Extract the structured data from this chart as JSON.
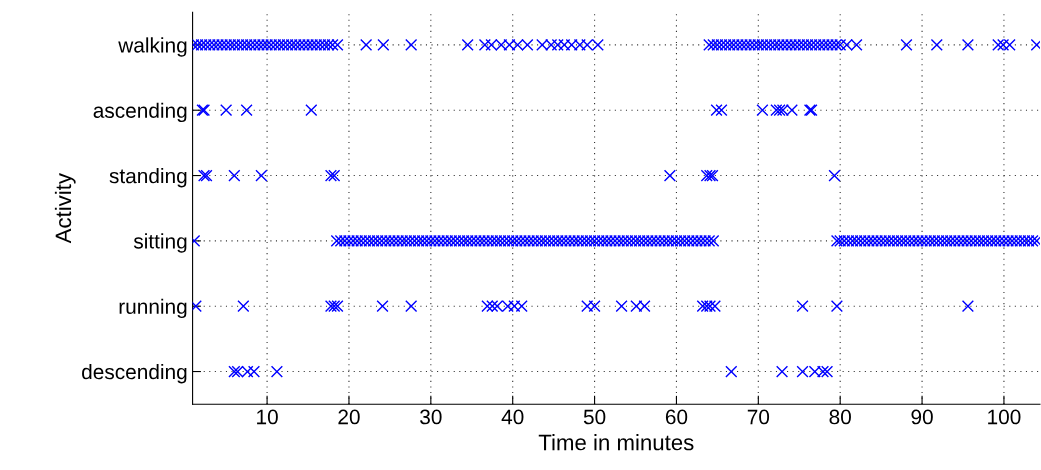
{
  "chart_data": {
    "type": "scatter",
    "orientation": "horizontal",
    "xlabel": "Time in minutes",
    "ylabel": "Activity",
    "categories": [
      "walking",
      "ascending",
      "standing",
      "sitting",
      "running",
      "descending"
    ],
    "xlim": [
      0.9,
      104.4
    ],
    "xticks": [
      10,
      20,
      30,
      40,
      50,
      60,
      70,
      80,
      90,
      100
    ],
    "grid": true,
    "marker": "cross",
    "series": [
      {
        "color": "#0000ff",
        "values": [
          1.0,
          1.5,
          2.0,
          2.5,
          3.0,
          3.5,
          4.0,
          4.5,
          5.0,
          5.5,
          6.0,
          6.5,
          7.0,
          7.5,
          8.0,
          8.5,
          9.0,
          9.5,
          10.0,
          10.5,
          11.0,
          11.5,
          12.0,
          12.5,
          13.0,
          13.5,
          14.0,
          14.5,
          15.0,
          15.5,
          16.0,
          16.5,
          17.0,
          17.5,
          18.0,
          18.6,
          22.1,
          24.2,
          27.6,
          34.5,
          36.6,
          37.4,
          38.6,
          39.6,
          40.6,
          41.8,
          43.6,
          44.7,
          45.5,
          46.3,
          47.2,
          48.2,
          49.1,
          50.4,
          64.0,
          64.5,
          65.0,
          65.5,
          66.0,
          66.5,
          67.0,
          67.5,
          68.0,
          68.5,
          69.0,
          69.5,
          70.0,
          70.5,
          71.0,
          71.5,
          72.0,
          72.5,
          73.0,
          73.5,
          74.0,
          74.5,
          75.0,
          75.5,
          76.0,
          76.5,
          77.0,
          77.5,
          78.0,
          78.5,
          79.0,
          79.5,
          80.0,
          80.8,
          82.0,
          88.1,
          91.8,
          95.6,
          99.3,
          99.9,
          100.7,
          104.0
        ],
        "x": [
          "walking",
          "walking",
          "walking",
          "walking",
          "walking",
          "walking",
          "walking",
          "walking",
          "walking",
          "walking",
          "walking",
          "walking",
          "walking",
          "walking",
          "walking",
          "walking",
          "walking",
          "walking",
          "walking",
          "walking",
          "walking",
          "walking",
          "walking",
          "walking",
          "walking",
          "walking",
          "walking",
          "walking",
          "walking",
          "walking",
          "walking",
          "walking",
          "walking",
          "walking",
          "walking",
          "walking",
          "walking",
          "walking",
          "walking",
          "walking",
          "walking",
          "walking",
          "walking",
          "walking",
          "walking",
          "walking",
          "walking",
          "walking",
          "walking",
          "walking",
          "walking",
          "walking",
          "walking",
          "walking",
          "walking",
          "walking",
          "walking",
          "walking",
          "walking",
          "walking",
          "walking",
          "walking",
          "walking",
          "walking",
          "walking",
          "walking",
          "walking",
          "walking",
          "walking",
          "walking",
          "walking",
          "walking",
          "walking",
          "walking",
          "walking",
          "walking",
          "walking",
          "walking",
          "walking",
          "walking",
          "walking",
          "walking",
          "walking",
          "walking",
          "walking",
          "walking",
          "walking",
          "walking",
          "walking",
          "walking",
          "walking",
          "walking",
          "walking",
          "walking",
          "walking",
          "walking"
        ]
      },
      {
        "color": "#0000ff",
        "values": [
          2.1,
          2.3,
          5.0,
          7.5,
          15.4,
          64.9,
          65.5,
          70.5,
          72.2,
          72.6,
          73.0,
          74.1,
          76.3,
          76.5
        ],
        "x": [
          "ascending",
          "ascending",
          "ascending",
          "ascending",
          "ascending",
          "ascending",
          "ascending",
          "ascending",
          "ascending",
          "ascending",
          "ascending",
          "ascending",
          "ascending",
          "ascending"
        ]
      },
      {
        "color": "#0000ff",
        "values": [
          2.3,
          2.6,
          6.0,
          9.3,
          17.8,
          18.2,
          59.2,
          63.7,
          64.1,
          64.4,
          79.3
        ],
        "x": [
          "standing",
          "standing",
          "standing",
          "standing",
          "standing",
          "standing",
          "standing",
          "standing",
          "standing",
          "standing",
          "standing"
        ]
      },
      {
        "color": "#0000ff",
        "values": [
          1.1,
          18.5,
          19.0,
          19.5,
          20.0,
          20.5,
          21.0,
          21.5,
          22.0,
          22.5,
          23.0,
          23.5,
          24.0,
          24.5,
          25.0,
          25.5,
          26.0,
          26.5,
          27.0,
          27.5,
          28.0,
          28.5,
          29.0,
          29.5,
          30.0,
          30.5,
          31.0,
          31.5,
          32.0,
          32.5,
          33.0,
          33.5,
          34.0,
          34.5,
          35.0,
          35.5,
          36.0,
          36.5,
          37.0,
          37.5,
          38.0,
          38.5,
          39.0,
          39.5,
          40.0,
          40.5,
          41.0,
          41.5,
          42.0,
          42.5,
          43.0,
          43.5,
          44.0,
          44.5,
          45.0,
          45.5,
          46.0,
          46.5,
          47.0,
          47.5,
          48.0,
          48.5,
          49.0,
          49.5,
          50.0,
          50.5,
          51.0,
          51.5,
          52.0,
          52.5,
          53.0,
          53.5,
          54.0,
          54.5,
          55.0,
          55.5,
          56.0,
          56.5,
          57.0,
          57.5,
          58.0,
          58.5,
          59.0,
          59.5,
          60.0,
          60.5,
          61.0,
          61.5,
          62.0,
          62.5,
          63.0,
          63.5,
          64.0,
          64.5,
          79.6,
          80.0,
          80.5,
          81.0,
          81.5,
          82.0,
          82.5,
          83.0,
          83.5,
          84.0,
          84.5,
          85.0,
          85.5,
          86.0,
          86.5,
          87.0,
          87.5,
          88.0,
          88.5,
          89.0,
          89.5,
          90.0,
          90.5,
          91.0,
          91.5,
          92.0,
          92.5,
          93.0,
          93.5,
          94.0,
          94.5,
          95.0,
          95.5,
          96.0,
          96.5,
          97.0,
          97.5,
          98.0,
          98.5,
          99.0,
          99.5,
          100.0,
          100.5,
          101.0,
          101.5,
          102.0,
          102.5,
          103.0,
          103.5,
          104.0
        ],
        "x": [
          "sitting",
          "sitting",
          "sitting",
          "sitting",
          "sitting",
          "sitting",
          "sitting",
          "sitting",
          "sitting",
          "sitting",
          "sitting",
          "sitting",
          "sitting",
          "sitting",
          "sitting",
          "sitting",
          "sitting",
          "sitting",
          "sitting",
          "sitting",
          "sitting",
          "sitting",
          "sitting",
          "sitting",
          "sitting",
          "sitting",
          "sitting",
          "sitting",
          "sitting",
          "sitting",
          "sitting",
          "sitting",
          "sitting",
          "sitting",
          "sitting",
          "sitting",
          "sitting",
          "sitting",
          "sitting",
          "sitting",
          "sitting",
          "sitting",
          "sitting",
          "sitting",
          "sitting",
          "sitting",
          "sitting",
          "sitting",
          "sitting",
          "sitting",
          "sitting",
          "sitting",
          "sitting",
          "sitting",
          "sitting",
          "sitting",
          "sitting",
          "sitting",
          "sitting",
          "sitting",
          "sitting",
          "sitting",
          "sitting",
          "sitting",
          "sitting",
          "sitting",
          "sitting",
          "sitting",
          "sitting",
          "sitting",
          "sitting",
          "sitting",
          "sitting",
          "sitting",
          "sitting",
          "sitting",
          "sitting",
          "sitting",
          "sitting",
          "sitting",
          "sitting",
          "sitting",
          "sitting",
          "sitting",
          "sitting",
          "sitting",
          "sitting",
          "sitting",
          "sitting",
          "sitting",
          "sitting",
          "sitting",
          "sitting",
          "sitting",
          "sitting",
          "sitting",
          "sitting",
          "sitting",
          "sitting",
          "sitting",
          "sitting",
          "sitting",
          "sitting",
          "sitting",
          "sitting",
          "sitting",
          "sitting",
          "sitting",
          "sitting",
          "sitting",
          "sitting",
          "sitting",
          "sitting",
          "sitting",
          "sitting",
          "sitting",
          "sitting",
          "sitting",
          "sitting",
          "sitting",
          "sitting",
          "sitting",
          "sitting",
          "sitting",
          "sitting",
          "sitting",
          "sitting",
          "sitting",
          "sitting",
          "sitting",
          "sitting",
          "sitting",
          "sitting",
          "sitting",
          "sitting",
          "sitting",
          "sitting",
          "sitting",
          "sitting",
          "sitting",
          "sitting",
          "sitting",
          "sitting",
          "sitting"
        ]
      },
      {
        "color": "#0000ff",
        "values": [
          1.3,
          7.1,
          17.8,
          18.2,
          18.6,
          24.1,
          27.6,
          36.9,
          37.5,
          38.1,
          39.4,
          40.2,
          41.1,
          49.1,
          50.0,
          53.3,
          55.1,
          56.1,
          63.2,
          63.7,
          64.1,
          64.7,
          75.4,
          79.6,
          95.6
        ],
        "x": [
          "running",
          "running",
          "running",
          "running",
          "running",
          "running",
          "running",
          "running",
          "running",
          "running",
          "running",
          "running",
          "running",
          "running",
          "running",
          "running",
          "running",
          "running",
          "running",
          "running",
          "running",
          "running",
          "running",
          "running",
          "running"
        ]
      },
      {
        "color": "#0000ff",
        "values": [
          6.0,
          6.4,
          7.6,
          8.4,
          11.2,
          66.7,
          72.9,
          75.4,
          76.9,
          77.9,
          78.4
        ],
        "x": [
          "descending",
          "descending",
          "descending",
          "descending",
          "descending",
          "descending",
          "descending",
          "descending",
          "descending",
          "descending",
          "descending"
        ]
      }
    ]
  }
}
